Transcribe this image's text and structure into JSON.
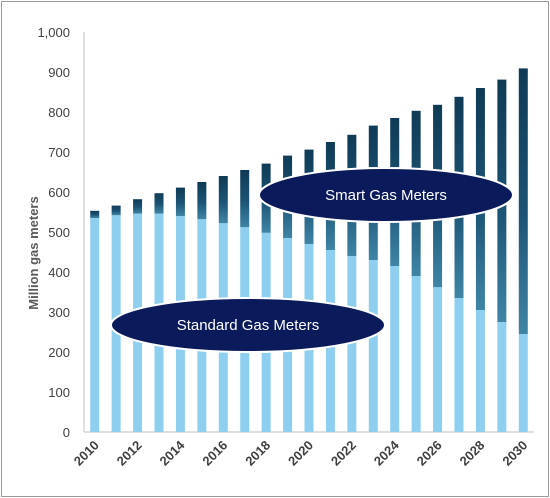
{
  "chart_data": {
    "type": "bar",
    "stacked": true,
    "ylabel": "Million gas meters",
    "ylim": [
      0,
      1000
    ],
    "yticks": [
      "0",
      "100",
      "200",
      "300",
      "400",
      "500",
      "600",
      "700",
      "800",
      "900",
      "1,000"
    ],
    "years": [
      2010,
      2011,
      2012,
      2013,
      2014,
      2015,
      2016,
      2017,
      2018,
      2019,
      2020,
      2021,
      2022,
      2023,
      2024,
      2025,
      2026,
      2027,
      2028,
      2029,
      2030
    ],
    "xtick_labels": [
      "2010",
      "2012",
      "2014",
      "2016",
      "2018",
      "2020",
      "2022",
      "2024",
      "2026",
      "2028",
      "2030"
    ],
    "series": [
      {
        "name": "Standard Gas Meters",
        "color": "#8ecfef",
        "values": [
          535,
          542,
          546,
          546,
          540,
          532,
          522,
          512,
          498,
          485,
          470,
          455,
          440,
          430,
          415,
          390,
          362,
          335,
          305,
          275,
          245
        ]
      },
      {
        "name": "Smart Gas Meters",
        "color": "#1a4d66",
        "values": [
          18,
          24,
          36,
          51,
          71,
          93,
          118,
          143,
          173,
          206,
          236,
          270,
          303,
          336,
          370,
          413,
          456,
          503,
          555,
          606,
          664
        ]
      }
    ],
    "totals": [
      553,
      566,
      582,
      597,
      611,
      625,
      640,
      655,
      671,
      691,
      706,
      725,
      743,
      766,
      785,
      803,
      818,
      838,
      860,
      881,
      909
    ],
    "annotations": [
      {
        "text": "Smart Gas Meters",
        "fill": "#0b1a5a"
      },
      {
        "text": "Standard Gas Meters",
        "fill": "#0b1a5a"
      }
    ],
    "grid": false,
    "legend": "none"
  }
}
